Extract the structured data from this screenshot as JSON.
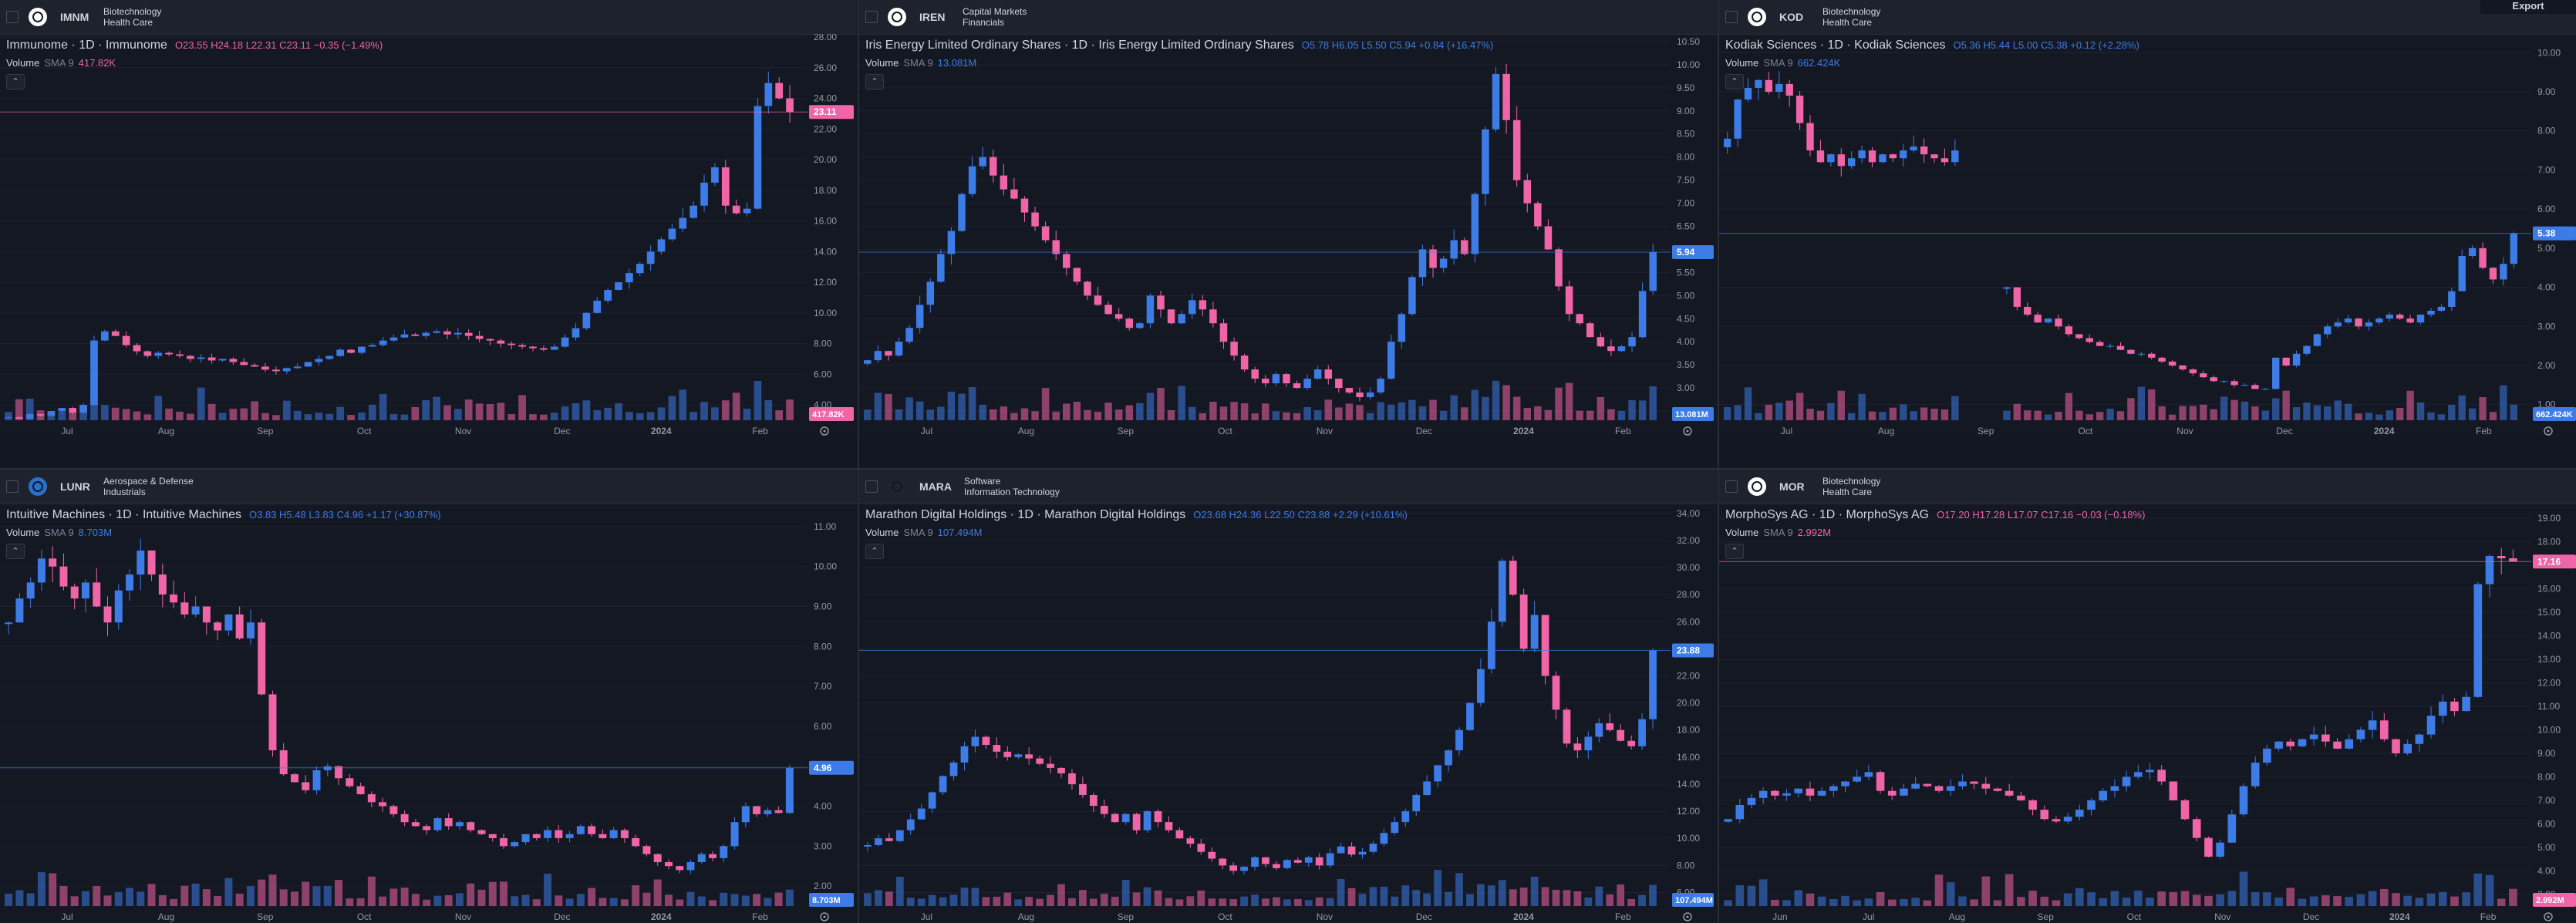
{
  "colors": {
    "up": "#3d7be6",
    "down": "#f064a8",
    "grid": "#1f2330",
    "axis_text": "#9598a1",
    "background": "#141823"
  },
  "toolbar": {
    "export_label": "Export"
  },
  "panels": [
    {
      "ticker": "IMNM",
      "sector1": "Biotechnology",
      "sector2": "Health Care",
      "title": "Immunome · 1D · Immunome",
      "ohlc": "O23.55 H24.18 L22.31 C23.11 −0.35 (−1.49%)",
      "volume_label": "Volume",
      "volume_sma": "SMA 9",
      "volume_value": "417.82K",
      "price_label": "23.11",
      "volume_badge": "417.82K",
      "y_ticks": [
        "28.00",
        "26.00",
        "24.00",
        "22.00",
        "20.00",
        "18.00",
        "16.00",
        "14.00",
        "12.00",
        "10.00",
        "8.00",
        "6.00",
        "4.00"
      ],
      "x_ticks": [
        "Jul",
        "Aug",
        "Sep",
        "Oct",
        "Nov",
        "Dec",
        "2024",
        "Feb"
      ],
      "chart_data": {
        "type": "candlestick",
        "ylim": [
          3,
          28
        ],
        "last": 23.11,
        "path": [
          3.2,
          3.1,
          3.4,
          3.3,
          3.6,
          3.8,
          3.5,
          4.0,
          8.2,
          8.8,
          8.5,
          7.9,
          7.5,
          7.2,
          7.4,
          7.3,
          7.2,
          7.0,
          7.1,
          6.9,
          7.0,
          6.8,
          6.6,
          6.5,
          6.3,
          6.2,
          6.4,
          6.5,
          6.8,
          7.0,
          7.2,
          7.6,
          7.4,
          7.8,
          7.9,
          8.2,
          8.4,
          8.6,
          8.5,
          8.7,
          8.8,
          8.6,
          8.7,
          8.5,
          8.3,
          8.2,
          8.0,
          7.9,
          7.8,
          7.7,
          7.6,
          7.8,
          8.4,
          9.0,
          10.0,
          10.8,
          11.5,
          12.0,
          12.6,
          13.2,
          14.0,
          14.8,
          15.5,
          16.2,
          17.0,
          18.5,
          19.5,
          17.0,
          16.5,
          16.8,
          23.5,
          25.0,
          24.0,
          23.11
        ]
      }
    },
    {
      "ticker": "IREN",
      "sector1": "Capital Markets",
      "sector2": "Financials",
      "title": "Iris Energy Limited Ordinary Shares · 1D · Iris Energy Limited Ordinary Shares",
      "ohlc": "O5.78 H6.05 L5.50 C5.94 +0.84 (+16.47%)",
      "volume_label": "Volume",
      "volume_sma": "SMA 9",
      "volume_value": "13.081M",
      "price_label": "5.94",
      "volume_badge": "13.081M",
      "y_ticks": [
        "10.50",
        "10.00",
        "9.50",
        "9.00",
        "8.50",
        "8.00",
        "7.50",
        "7.00",
        "6.50",
        "6.00",
        "5.50",
        "5.00",
        "4.50",
        "4.00",
        "3.50",
        "3.00",
        "2.50"
      ],
      "x_ticks": [
        "Jul",
        "Aug",
        "Sep",
        "Oct",
        "Nov",
        "Dec",
        "2024",
        "Feb"
      ],
      "chart_data": {
        "type": "candlestick",
        "ylim": [
          2.3,
          10.6
        ],
        "last": 5.94,
        "path": [
          3.6,
          3.8,
          3.7,
          4.0,
          4.3,
          4.8,
          5.3,
          5.9,
          6.4,
          7.2,
          7.8,
          8.0,
          7.6,
          7.3,
          7.1,
          6.8,
          6.5,
          6.2,
          5.9,
          5.6,
          5.3,
          5.0,
          4.8,
          4.6,
          4.5,
          4.3,
          4.4,
          5.0,
          4.7,
          4.4,
          4.6,
          4.9,
          4.7,
          4.4,
          4.0,
          3.7,
          3.4,
          3.2,
          3.1,
          3.3,
          3.1,
          3.0,
          3.2,
          3.4,
          3.2,
          3.0,
          2.9,
          2.8,
          2.9,
          3.2,
          4.0,
          4.6,
          5.4,
          6.0,
          5.6,
          5.8,
          6.2,
          5.9,
          7.2,
          8.6,
          9.8,
          8.8,
          7.5,
          7.0,
          6.5,
          6.0,
          5.2,
          4.6,
          4.4,
          4.1,
          3.9,
          3.8,
          3.9,
          4.1,
          5.1,
          5.94
        ]
      }
    },
    {
      "ticker": "KOD",
      "sector1": "Biotechnology",
      "sector2": "Health Care",
      "title": "Kodiak Sciences · 1D · Kodiak Sciences",
      "ohlc": "O5.36 H5.44 L5.00 C5.38 +0.12 (+2.28%)",
      "volume_label": "Volume",
      "volume_sma": "SMA 9",
      "volume_value": "662.424K",
      "price_label": "5.38",
      "volume_badge": "662.424K",
      "y_ticks": [
        "10.00",
        "9.00",
        "8.00",
        "7.00",
        "6.00",
        "5.00",
        "4.00",
        "3.00",
        "2.00",
        "1.00"
      ],
      "x_ticks": [
        "Jul",
        "Aug",
        "Sep",
        "Oct",
        "Nov",
        "Dec",
        "2024",
        "Feb"
      ],
      "chart_data": {
        "type": "candlestick",
        "ylim": [
          0.6,
          10.4
        ],
        "last": 5.38,
        "path": [
          7.8,
          8.8,
          9.1,
          9.3,
          9.0,
          9.2,
          8.9,
          8.2,
          7.5,
          7.2,
          7.4,
          7.1,
          7.3,
          7.5,
          7.2,
          7.4,
          7.3,
          7.5,
          7.6,
          7.4,
          7.3,
          7.2,
          7.5,
          null,
          null,
          null,
          null,
          4.0,
          3.5,
          3.3,
          3.1,
          3.2,
          3.0,
          2.8,
          2.7,
          2.6,
          2.5,
          2.5,
          2.4,
          2.3,
          2.3,
          2.2,
          2.1,
          2.0,
          1.9,
          1.8,
          1.7,
          1.6,
          1.6,
          1.5,
          1.5,
          1.4,
          1.4,
          2.2,
          2.0,
          2.3,
          2.5,
          2.8,
          3.0,
          3.1,
          3.2,
          3.0,
          3.1,
          3.2,
          3.3,
          3.2,
          3.1,
          3.3,
          3.4,
          3.5,
          3.9,
          4.8,
          5.0,
          4.5,
          4.2,
          4.6,
          5.38
        ]
      }
    },
    {
      "ticker": "LUNR",
      "sector1": "Aerospace & Defense",
      "sector2": "Industrials",
      "title": "Intuitive Machines · 1D · Intuitive Machines",
      "ohlc": "O3.83 H5.48 L3.83 C4.96 +1.17 (+30.87%)",
      "volume_label": "Volume",
      "volume_sma": "SMA 9",
      "volume_value": "8.703M",
      "price_label": "4.96",
      "volume_badge": "8.703M",
      "y_ticks": [
        "11.00",
        "10.00",
        "9.00",
        "8.00",
        "7.00",
        "6.00",
        "5.00",
        "4.00",
        "3.00",
        "2.00"
      ],
      "x_ticks": [
        "Jul",
        "Aug",
        "Sep",
        "Oct",
        "Nov",
        "Dec",
        "2024",
        "Feb"
      ],
      "chart_data": {
        "type": "candlestick",
        "ylim": [
          1.5,
          11.5
        ],
        "last": 4.96,
        "path": [
          8.6,
          9.2,
          9.6,
          10.2,
          10.0,
          9.5,
          9.2,
          9.6,
          9.0,
          8.6,
          9.4,
          9.8,
          10.4,
          9.8,
          9.3,
          9.1,
          8.8,
          9.0,
          8.6,
          8.4,
          8.8,
          8.2,
          8.6,
          6.8,
          5.4,
          4.8,
          4.6,
          4.4,
          4.9,
          5.0,
          4.7,
          4.5,
          4.3,
          4.1,
          4.0,
          3.8,
          3.6,
          3.5,
          3.4,
          3.7,
          3.5,
          3.6,
          3.4,
          3.3,
          3.2,
          3.0,
          3.1,
          3.3,
          3.2,
          3.4,
          3.2,
          3.3,
          3.5,
          3.3,
          3.2,
          3.4,
          3.2,
          3.0,
          2.8,
          2.6,
          2.5,
          2.4,
          2.6,
          2.8,
          2.7,
          3.0,
          3.6,
          4.0,
          3.8,
          3.9,
          3.83,
          4.96
        ]
      }
    },
    {
      "ticker": "MARA",
      "sector1": "Software",
      "sector2": "Information Technology",
      "title": "Marathon Digital Holdings · 1D · Marathon Digital Holdings",
      "ohlc": "O23.68 H24.36 L22.50 C23.88 +2.29 (+10.61%)",
      "volume_label": "Volume",
      "volume_sma": "SMA 9",
      "volume_value": "107.494M",
      "price_label": "23.88",
      "volume_badge": "107.494M",
      "y_ticks": [
        "34.00",
        "32.00",
        "30.00",
        "28.00",
        "26.00",
        "24.00",
        "22.00",
        "20.00",
        "18.00",
        "16.00",
        "14.00",
        "12.00",
        "10.00",
        "8.00",
        "6.00"
      ],
      "x_ticks": [
        "Jul",
        "Aug",
        "Sep",
        "Oct",
        "Nov",
        "Dec",
        "2024",
        "Feb"
      ],
      "chart_data": {
        "type": "candlestick",
        "ylim": [
          5,
          34.5
        ],
        "last": 23.88,
        "path": [
          9.5,
          10.0,
          9.8,
          10.6,
          11.4,
          12.2,
          13.4,
          14.6,
          15.6,
          16.8,
          17.5,
          16.9,
          16.4,
          16.0,
          16.2,
          15.9,
          15.5,
          15.2,
          14.8,
          14.0,
          13.2,
          12.4,
          11.8,
          11.2,
          11.8,
          10.6,
          12.0,
          11.2,
          10.6,
          10.0,
          9.6,
          9.0,
          8.5,
          8.0,
          7.6,
          7.9,
          8.6,
          8.1,
          7.8,
          8.4,
          8.2,
          8.6,
          8.0,
          8.9,
          9.4,
          8.8,
          9.0,
          9.6,
          10.4,
          11.2,
          12.0,
          13.2,
          14.2,
          15.4,
          16.5,
          18.0,
          20.0,
          22.5,
          26.0,
          30.5,
          28.0,
          24.0,
          26.5,
          22.0,
          19.5,
          17.0,
          16.5,
          17.5,
          18.5,
          18.0,
          17.2,
          16.8,
          18.8,
          23.88
        ]
      }
    },
    {
      "ticker": "MOR",
      "sector1": "Biotechnology",
      "sector2": "Health Care",
      "title": "MorphoSys AG · 1D · MorphoSys AG",
      "ohlc": "O17.20 H17.28 L17.07 C17.16 −0.03 (−0.18%)",
      "volume_label": "Volume",
      "volume_sma": "SMA 9",
      "volume_value": "2.992M",
      "price_label": "17.16",
      "volume_badge": "2.992M",
      "y_ticks": [
        "19.00",
        "18.00",
        "17.00",
        "16.00",
        "15.00",
        "14.00",
        "13.00",
        "12.00",
        "11.00",
        "10.00",
        "9.00",
        "8.00",
        "7.00",
        "6.00",
        "5.00",
        "4.00",
        "3.00"
      ],
      "x_ticks": [
        "Jun",
        "Jul",
        "Aug",
        "Sep",
        "Oct",
        "Nov",
        "Dec",
        "2024",
        "Feb"
      ],
      "chart_data": {
        "type": "candlestick",
        "ylim": [
          2.5,
          19.5
        ],
        "last": 17.16,
        "path": [
          6.2,
          6.8,
          7.1,
          7.4,
          7.2,
          7.3,
          7.5,
          7.2,
          7.4,
          7.6,
          7.8,
          8.0,
          8.2,
          7.4,
          7.2,
          7.5,
          7.7,
          7.6,
          7.4,
          7.6,
          7.8,
          7.7,
          7.5,
          7.4,
          7.2,
          7.0,
          6.6,
          6.2,
          6.1,
          6.3,
          6.6,
          7.0,
          7.4,
          7.6,
          8.0,
          8.2,
          8.3,
          7.8,
          7.0,
          6.2,
          5.4,
          4.6,
          5.2,
          6.4,
          7.6,
          8.6,
          9.2,
          9.5,
          9.3,
          9.6,
          9.8,
          9.5,
          9.2,
          9.6,
          10.0,
          10.4,
          9.6,
          9.0,
          9.4,
          9.8,
          10.6,
          11.2,
          10.8,
          11.4,
          16.2,
          17.4,
          17.3,
          17.16
        ]
      }
    }
  ]
}
